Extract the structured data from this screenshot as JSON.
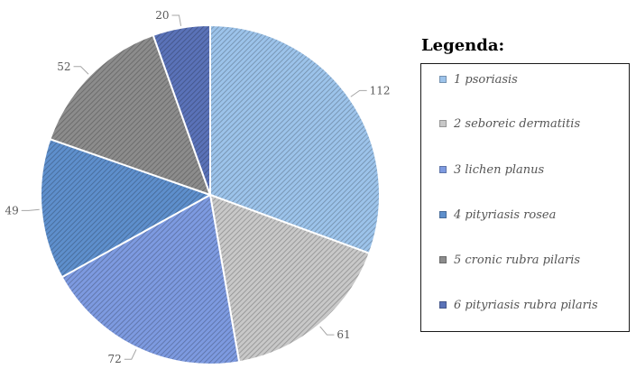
{
  "chart_data": {
    "type": "pie",
    "values": [
      112,
      61,
      72,
      49,
      52,
      20
    ],
    "legend_title": "Legenda:",
    "legend_position": "right",
    "categories": [
      "1 psoriasis",
      "2 seboreic dermatitis",
      "3 lichen planus",
      "4 pityriasis rosea",
      "5 cronic rubra pilaris",
      "6 pityriasis rubra pilaris"
    ],
    "colors": [
      "#9cc3ea",
      "#c8c8c8",
      "#7d9ae0",
      "#5e8fcc",
      "#8c8c8c",
      "#5a72b8"
    ],
    "slice_order": [
      0,
      1,
      2,
      3,
      4,
      5
    ],
    "start_angle_deg": 0,
    "direction": "clockwise"
  }
}
